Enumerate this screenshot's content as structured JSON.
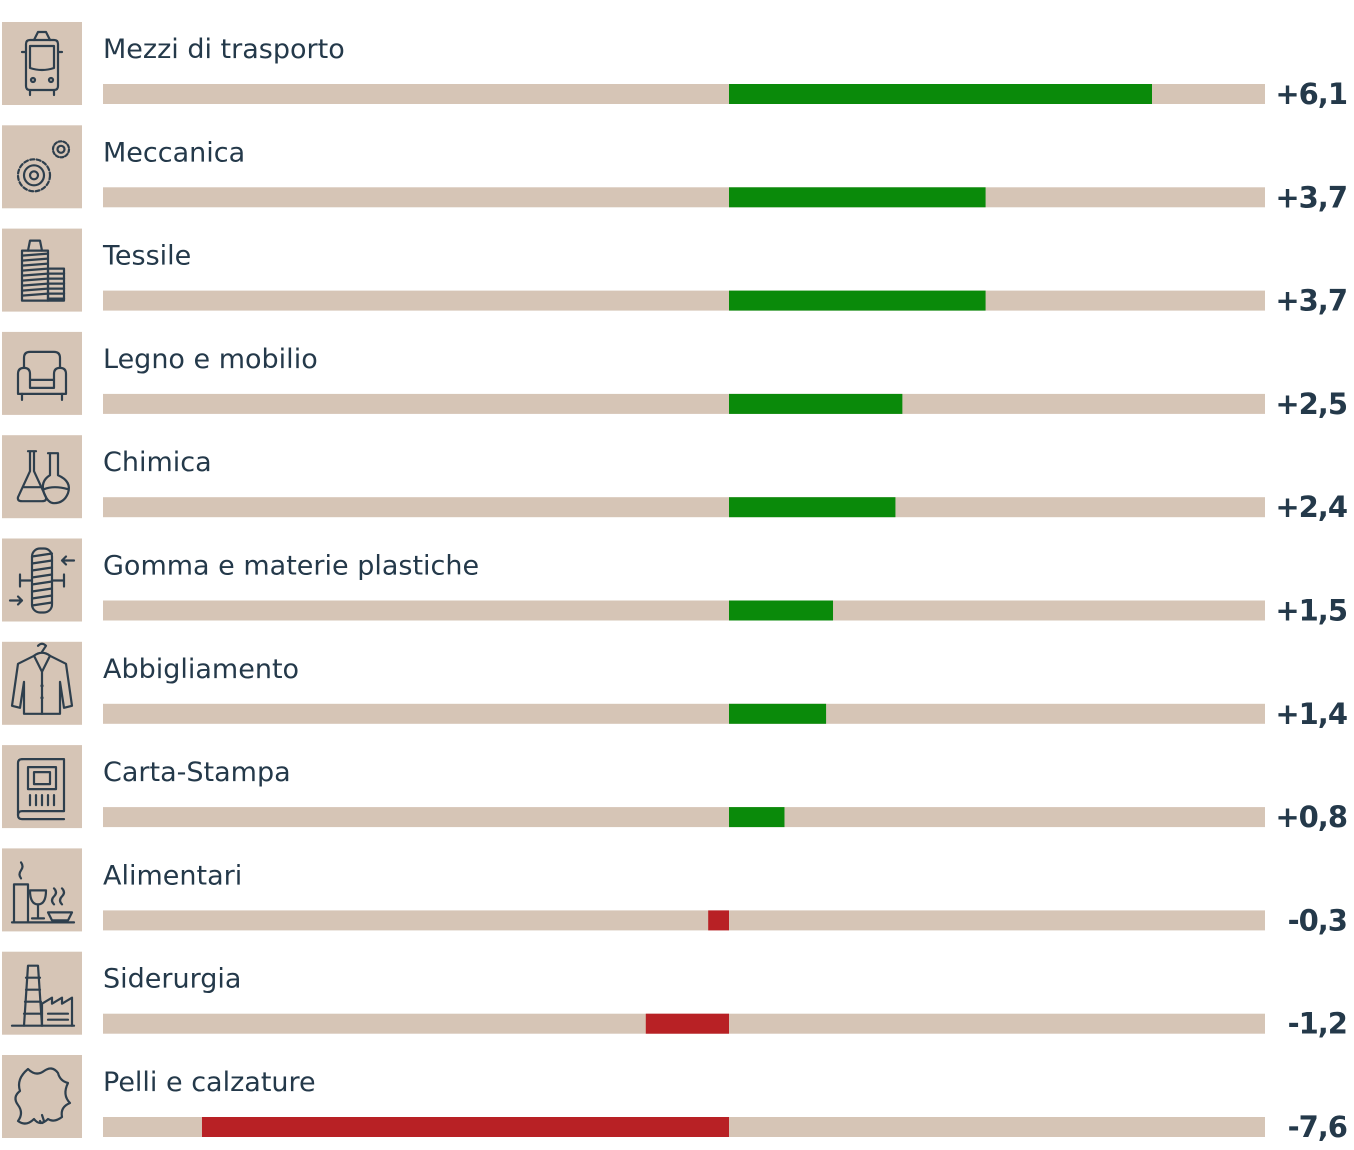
{
  "colors": {
    "positive": "#0a8a0a",
    "negative": "#b82125",
    "track": "#d6c5b6",
    "icon_background": "#d6c5b6",
    "text": "#24394a"
  },
  "chart_data": {
    "type": "bar",
    "orientation": "horizontal",
    "zero_line": "center",
    "xlim": [
      -10.5,
      10.5
    ],
    "grid": false,
    "legend": "none",
    "categories": [
      "Mezzi di trasporto",
      "Meccanica",
      "Tessile",
      "Legno e mobilio",
      "Chimica",
      "Gomma e materie plastiche",
      "Abbigliamento",
      "Carta-Stampa",
      "Alimentari",
      "Siderurgia",
      "Pelli e calzature"
    ],
    "values": [
      6.1,
      3.7,
      3.7,
      2.5,
      2.4,
      1.5,
      1.4,
      0.8,
      -0.3,
      -1.2,
      -7.6
    ],
    "data_labels": [
      "+6,1",
      "+3,7",
      "+3,7",
      "+2,5",
      "+2,4",
      "+1,5",
      "+1,4",
      "+0,8",
      "-0,3",
      "-1,2",
      "-7,6"
    ],
    "icons": [
      "bus-front-icon",
      "gears-icon",
      "thread-spool-icon",
      "armchair-icon",
      "lab-flasks-icon",
      "tire-press-icon",
      "jacket-icon",
      "printed-book-icon",
      "food-drink-icon",
      "factory-chimney-icon",
      "leather-hide-icon"
    ]
  }
}
